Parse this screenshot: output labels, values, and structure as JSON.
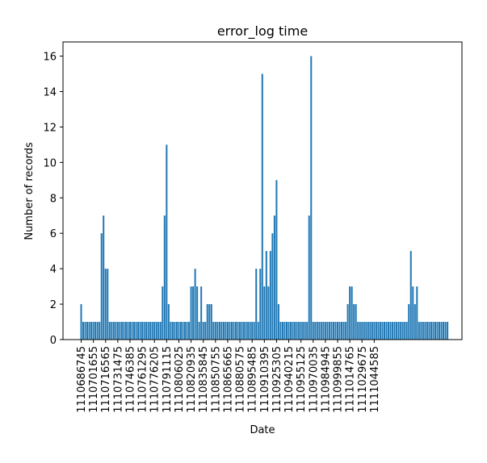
{
  "chart_data": {
    "type": "bar",
    "title": "error_log time",
    "xlabel": "Date",
    "ylabel": "Number of records",
    "ylim": [
      0,
      16.8
    ],
    "y_ticks": [
      "0",
      "2",
      "4",
      "6",
      "8",
      "10",
      "12",
      "14",
      "16"
    ],
    "x_tick_labels": [
      "1110686745",
      "1110701655",
      "1110716565",
      "1110731475",
      "1110746385",
      "1110761295",
      "1110776205",
      "1110791115",
      "1110806025",
      "1110820935",
      "1110835845",
      "1110850755",
      "1110865665",
      "1110880575",
      "1110895485",
      "1110910395",
      "1110925305",
      "1110940215",
      "1110955125",
      "1110970035",
      "1110984945",
      "1110999855",
      "1111014765",
      "1111029675",
      "1111044585"
    ],
    "bar_color": "#1f77b4",
    "grid": false,
    "series": [
      {
        "values": [
          2,
          1,
          1,
          1,
          1,
          1,
          1,
          1,
          1,
          1,
          6,
          7,
          4,
          4,
          1,
          1,
          1,
          1,
          1,
          1,
          1,
          1,
          1,
          1,
          1,
          1,
          1,
          1,
          1,
          1,
          1,
          1,
          1,
          1,
          1,
          1,
          1,
          1,
          1,
          1,
          3,
          7,
          11,
          2,
          1,
          1,
          1,
          1,
          1,
          1,
          1,
          1,
          1,
          1,
          3,
          3,
          4,
          3,
          1,
          3,
          1,
          1,
          2,
          2,
          2,
          1,
          1,
          1,
          1,
          1,
          1,
          1,
          1,
          1,
          1,
          1,
          1,
          1,
          1,
          1,
          1,
          1,
          1,
          1,
          1,
          1,
          4,
          1,
          4,
          15,
          3,
          5,
          3,
          5,
          6,
          7,
          9,
          2,
          1,
          1,
          1,
          1,
          1,
          1,
          1,
          1,
          1,
          1,
          1,
          1,
          1,
          1,
          7,
          16,
          1,
          1,
          1,
          1,
          1,
          1,
          1,
          1,
          1,
          1,
          1,
          1,
          1,
          1,
          1,
          1,
          1,
          2,
          3,
          3,
          2,
          2,
          1,
          1,
          1,
          1,
          1,
          1,
          1,
          1,
          1,
          1,
          1,
          1,
          1,
          1,
          1,
          1,
          1,
          1,
          1,
          1,
          1,
          1,
          1,
          1,
          1,
          2,
          5,
          3,
          2,
          3,
          1,
          1,
          1,
          1,
          1,
          1,
          1,
          1,
          1,
          1,
          1,
          1,
          1,
          1,
          1
        ]
      }
    ]
  }
}
